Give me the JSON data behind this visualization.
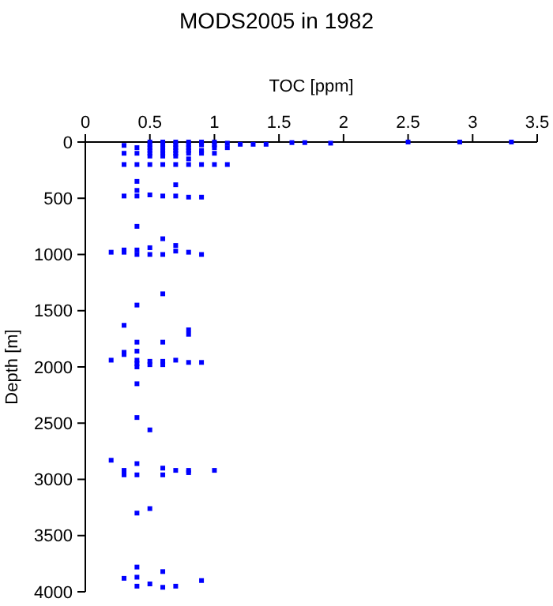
{
  "chart_data": {
    "type": "scatter",
    "title": "MODS2005 in 1982",
    "xlabel": "TOC [ppm]",
    "ylabel": "Depth [m]",
    "xlim": [
      0,
      3.5
    ],
    "ylim": [
      4000,
      0
    ],
    "xticks": [
      0,
      0.5,
      1,
      1.5,
      2,
      2.5,
      3,
      3.5
    ],
    "yticks": [
      0,
      500,
      1000,
      1500,
      2000,
      2500,
      3000,
      3500,
      4000
    ],
    "marker": "square",
    "grid": false,
    "series": [
      {
        "color": "#0000ff",
        "x": [
          0.5,
          0.6,
          0.7,
          0.8,
          0.9,
          1.0,
          1.1,
          1.2,
          1.3,
          1.4,
          1.6,
          1.7,
          1.9,
          2.5,
          2.9,
          3.3,
          0.3,
          0.3,
          0.3,
          0.4,
          0.4,
          0.4,
          0.5,
          0.5,
          0.5,
          0.5,
          0.5,
          0.5,
          0.6,
          0.6,
          0.6,
          0.6,
          0.6,
          0.6,
          0.7,
          0.7,
          0.7,
          0.7,
          0.7,
          0.7,
          0.8,
          0.8,
          0.8,
          0.8,
          0.8,
          0.8,
          0.9,
          0.9,
          0.9,
          0.9,
          1.0,
          1.0,
          1.0,
          1.0,
          1.1,
          1.1,
          0.3,
          0.4,
          0.4,
          0.4,
          0.5,
          0.6,
          0.7,
          0.7,
          0.8,
          0.9,
          0.4,
          0.2,
          0.3,
          0.3,
          0.4,
          0.4,
          0.5,
          0.5,
          0.6,
          0.6,
          0.7,
          0.7,
          0.8,
          0.9,
          0.6,
          0.4,
          0.3,
          0.8,
          0.8,
          0.4,
          0.6,
          0.3,
          0.3,
          0.4,
          0.2,
          0.4,
          0.4,
          0.4,
          0.5,
          0.5,
          0.6,
          0.6,
          0.7,
          0.8,
          0.9,
          0.4,
          0.4,
          0.5,
          0.2,
          0.4,
          0.6,
          0.3,
          0.7,
          0.8,
          1.0,
          0.3,
          0.4,
          0.6,
          0.8,
          0.5,
          0.4,
          0.4,
          0.6,
          0.3,
          0.4,
          0.9,
          0.4,
          0.5,
          0.6,
          0.7
        ],
        "values": [
          0,
          0,
          0,
          0,
          0,
          0,
          10,
          20,
          20,
          20,
          5,
          5,
          10,
          0,
          0,
          0,
          30,
          100,
          200,
          50,
          100,
          200,
          25,
          50,
          75,
          100,
          125,
          200,
          25,
          50,
          75,
          100,
          125,
          200,
          25,
          50,
          75,
          100,
          125,
          200,
          25,
          50,
          75,
          100,
          150,
          200,
          25,
          75,
          100,
          200,
          25,
          50,
          100,
          200,
          50,
          200,
          480,
          350,
          430,
          480,
          470,
          480,
          380,
          480,
          490,
          490,
          750,
          980,
          960,
          980,
          960,
          1000,
          940,
          1000,
          860,
          1000,
          920,
          970,
          980,
          1000,
          1350,
          1450,
          1630,
          1670,
          1710,
          1780,
          1780,
          1870,
          1890,
          1860,
          1940,
          1940,
          1970,
          2000,
          1950,
          1980,
          1950,
          1980,
          1940,
          1960,
          1960,
          2150,
          2450,
          2560,
          2830,
          2860,
          2900,
          2920,
          2920,
          2920,
          2920,
          2960,
          2960,
          2960,
          2940,
          3260,
          3300,
          3780,
          3820,
          3880,
          3870,
          3900,
          3950,
          3930,
          3960,
          3950
        ]
      }
    ]
  }
}
